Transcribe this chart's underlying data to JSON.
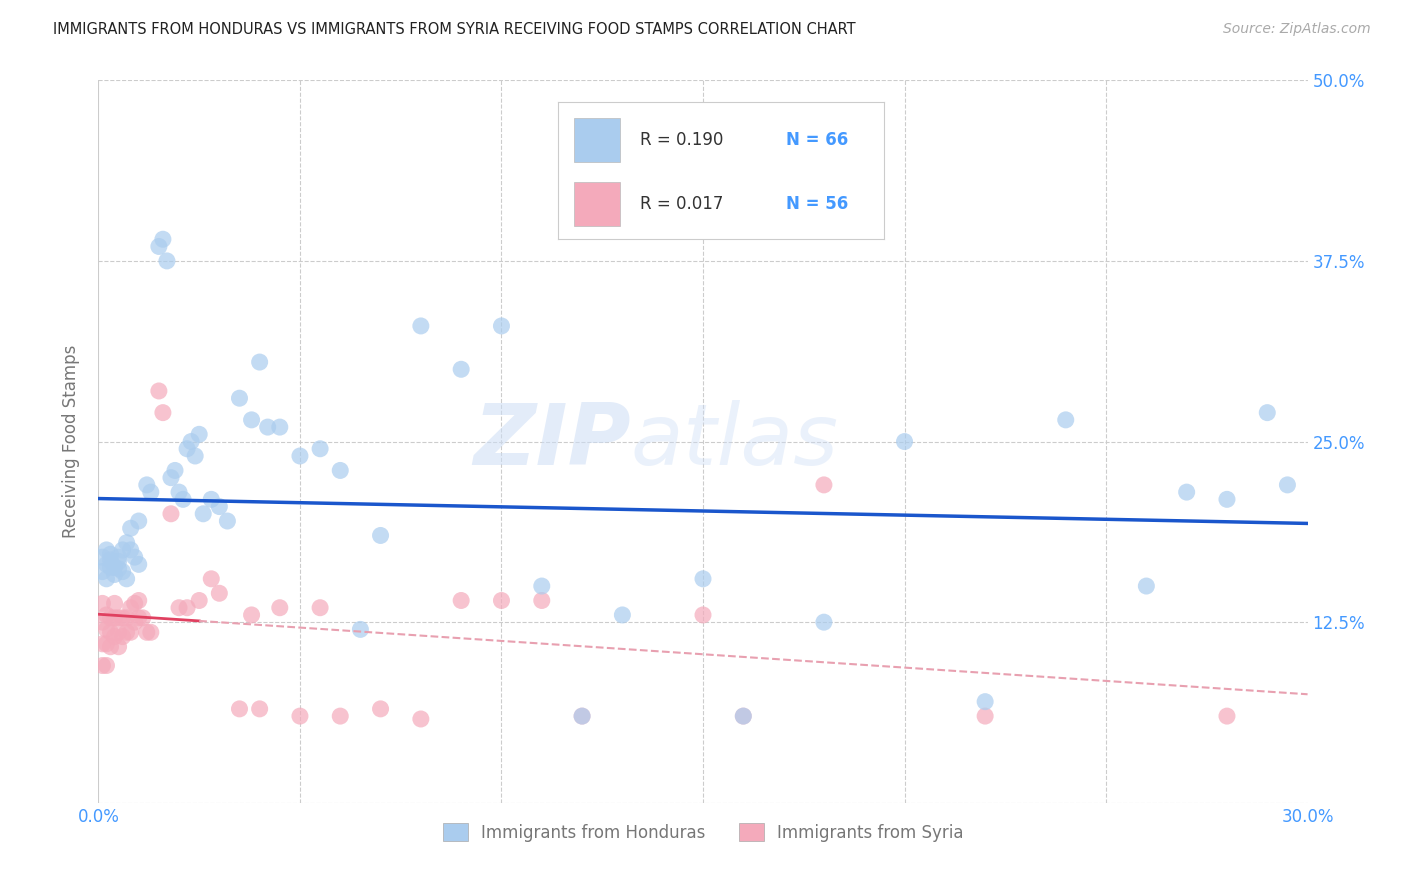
{
  "title": "IMMIGRANTS FROM HONDURAS VS IMMIGRANTS FROM SYRIA RECEIVING FOOD STAMPS CORRELATION CHART",
  "source": "Source: ZipAtlas.com",
  "ylabel": "Receiving Food Stamps",
  "xlim": [
    0.0,
    0.3
  ],
  "ylim": [
    0.0,
    0.5
  ],
  "xticks": [
    0.0,
    0.05,
    0.1,
    0.15,
    0.2,
    0.25,
    0.3
  ],
  "yticks": [
    0.0,
    0.125,
    0.25,
    0.375,
    0.5
  ],
  "legend_label1": "Immigrants from Honduras",
  "legend_label2": "Immigrants from Syria",
  "legend_R1": "0.190",
  "legend_N1": "66",
  "legend_R2": "0.017",
  "legend_N2": "56",
  "blue_scatter_color": "#aaccee",
  "pink_scatter_color": "#f4aabb",
  "blue_line_color": "#1a56cc",
  "pink_line_color": "#e04060",
  "pink_dash_color": "#e8a0b0",
  "title_color": "#222222",
  "tick_color": "#4499ff",
  "grid_color": "#cccccc",
  "watermark": "ZIPatlas",
  "honduras_x": [
    0.001,
    0.001,
    0.002,
    0.002,
    0.002,
    0.003,
    0.003,
    0.003,
    0.004,
    0.004,
    0.005,
    0.005,
    0.005,
    0.006,
    0.006,
    0.007,
    0.007,
    0.008,
    0.008,
    0.009,
    0.01,
    0.01,
    0.012,
    0.013,
    0.015,
    0.016,
    0.017,
    0.018,
    0.019,
    0.02,
    0.021,
    0.022,
    0.023,
    0.024,
    0.025,
    0.026,
    0.028,
    0.03,
    0.032,
    0.035,
    0.038,
    0.04,
    0.042,
    0.045,
    0.05,
    0.055,
    0.06,
    0.065,
    0.07,
    0.08,
    0.09,
    0.1,
    0.11,
    0.12,
    0.13,
    0.15,
    0.16,
    0.18,
    0.2,
    0.22,
    0.24,
    0.26,
    0.27,
    0.28,
    0.29,
    0.295
  ],
  "honduras_y": [
    0.17,
    0.16,
    0.165,
    0.175,
    0.155,
    0.163,
    0.172,
    0.168,
    0.158,
    0.163,
    0.162,
    0.17,
    0.167,
    0.16,
    0.175,
    0.18,
    0.155,
    0.19,
    0.175,
    0.17,
    0.165,
    0.195,
    0.22,
    0.215,
    0.385,
    0.39,
    0.375,
    0.225,
    0.23,
    0.215,
    0.21,
    0.245,
    0.25,
    0.24,
    0.255,
    0.2,
    0.21,
    0.205,
    0.195,
    0.28,
    0.265,
    0.305,
    0.26,
    0.26,
    0.24,
    0.245,
    0.23,
    0.12,
    0.185,
    0.33,
    0.3,
    0.33,
    0.15,
    0.06,
    0.13,
    0.155,
    0.06,
    0.125,
    0.25,
    0.07,
    0.265,
    0.15,
    0.215,
    0.21,
    0.27,
    0.22
  ],
  "syria_x": [
    0.001,
    0.001,
    0.001,
    0.001,
    0.002,
    0.002,
    0.002,
    0.002,
    0.003,
    0.003,
    0.003,
    0.004,
    0.004,
    0.004,
    0.005,
    0.005,
    0.005,
    0.006,
    0.006,
    0.007,
    0.007,
    0.008,
    0.008,
    0.009,
    0.009,
    0.01,
    0.01,
    0.011,
    0.012,
    0.013,
    0.015,
    0.016,
    0.018,
    0.02,
    0.022,
    0.025,
    0.028,
    0.03,
    0.035,
    0.038,
    0.04,
    0.045,
    0.05,
    0.055,
    0.06,
    0.07,
    0.08,
    0.09,
    0.1,
    0.11,
    0.12,
    0.15,
    0.16,
    0.18,
    0.22,
    0.28
  ],
  "syria_y": [
    0.138,
    0.125,
    0.11,
    0.095,
    0.12,
    0.13,
    0.11,
    0.095,
    0.128,
    0.108,
    0.118,
    0.115,
    0.128,
    0.138,
    0.108,
    0.118,
    0.128,
    0.115,
    0.128,
    0.118,
    0.128,
    0.135,
    0.118,
    0.138,
    0.125,
    0.14,
    0.128,
    0.128,
    0.118,
    0.118,
    0.285,
    0.27,
    0.2,
    0.135,
    0.135,
    0.14,
    0.155,
    0.145,
    0.065,
    0.13,
    0.065,
    0.135,
    0.06,
    0.135,
    0.06,
    0.065,
    0.058,
    0.14,
    0.14,
    0.14,
    0.06,
    0.13,
    0.06,
    0.22,
    0.06,
    0.06
  ]
}
